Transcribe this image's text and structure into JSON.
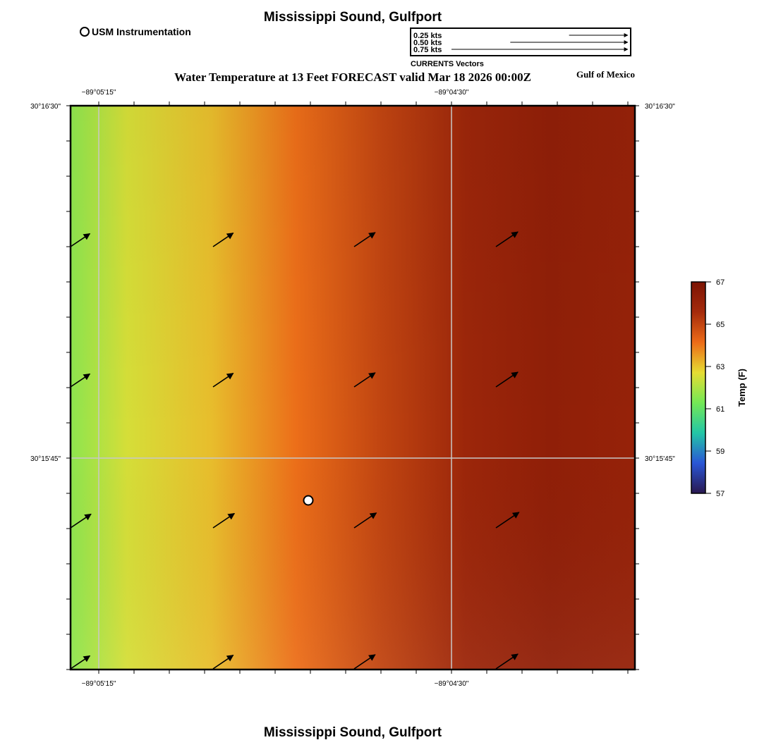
{
  "map": {
    "title_top": "Mississippi Sound, Gulfport",
    "title_bottom": "Mississippi Sound, Gulfport",
    "main_title": "Water Temperature at 13 Feet FORECAST valid Mar 18 2026 00:00Z",
    "region_label": "Gulf of Mexico",
    "instrument_legend": "USM Instrumentation",
    "vector_legend": {
      "title": "CURRENTS Vectors",
      "entries": [
        {
          "label": "0.25 kts",
          "speed_kts": 0.25
        },
        {
          "label": "0.50 kts",
          "speed_kts": 0.5
        },
        {
          "label": "0.75 kts",
          "speed_kts": 0.75
        }
      ]
    },
    "lon_labels": {
      "west": "−89°05'15\"",
      "east": "−89°04'30\""
    },
    "lat_labels": {
      "north": "30°16'30\"",
      "mid": "30°15'45\""
    }
  },
  "colorbar": {
    "label": "Temp (F)",
    "range": [
      57,
      67
    ],
    "ticks": [
      "67",
      "65",
      "63",
      "61",
      "59",
      "57"
    ],
    "stops": [
      "#2a1850",
      "#2a56d6",
      "#23c6a6",
      "#74e855",
      "#e6dc33",
      "#ec6b18",
      "#a52b0c",
      "#7c1404"
    ]
  },
  "temperature_field": {
    "columns": [
      {
        "pos": 0.0,
        "temp": 61.6
      },
      {
        "pos": 0.1,
        "temp": 62.5
      },
      {
        "pos": 0.25,
        "temp": 63.1
      },
      {
        "pos": 0.4,
        "temp": 64.1
      },
      {
        "pos": 0.55,
        "temp": 65.0
      },
      {
        "pos": 0.7,
        "temp": 65.9
      },
      {
        "pos": 0.85,
        "temp": 66.3
      },
      {
        "pos": 1.0,
        "temp": 66.1
      }
    ]
  },
  "colors": {
    "grid_line": "#c8c8c8",
    "frame": "#000000",
    "vector": "#000000",
    "station_fill": "#ffffff"
  }
}
